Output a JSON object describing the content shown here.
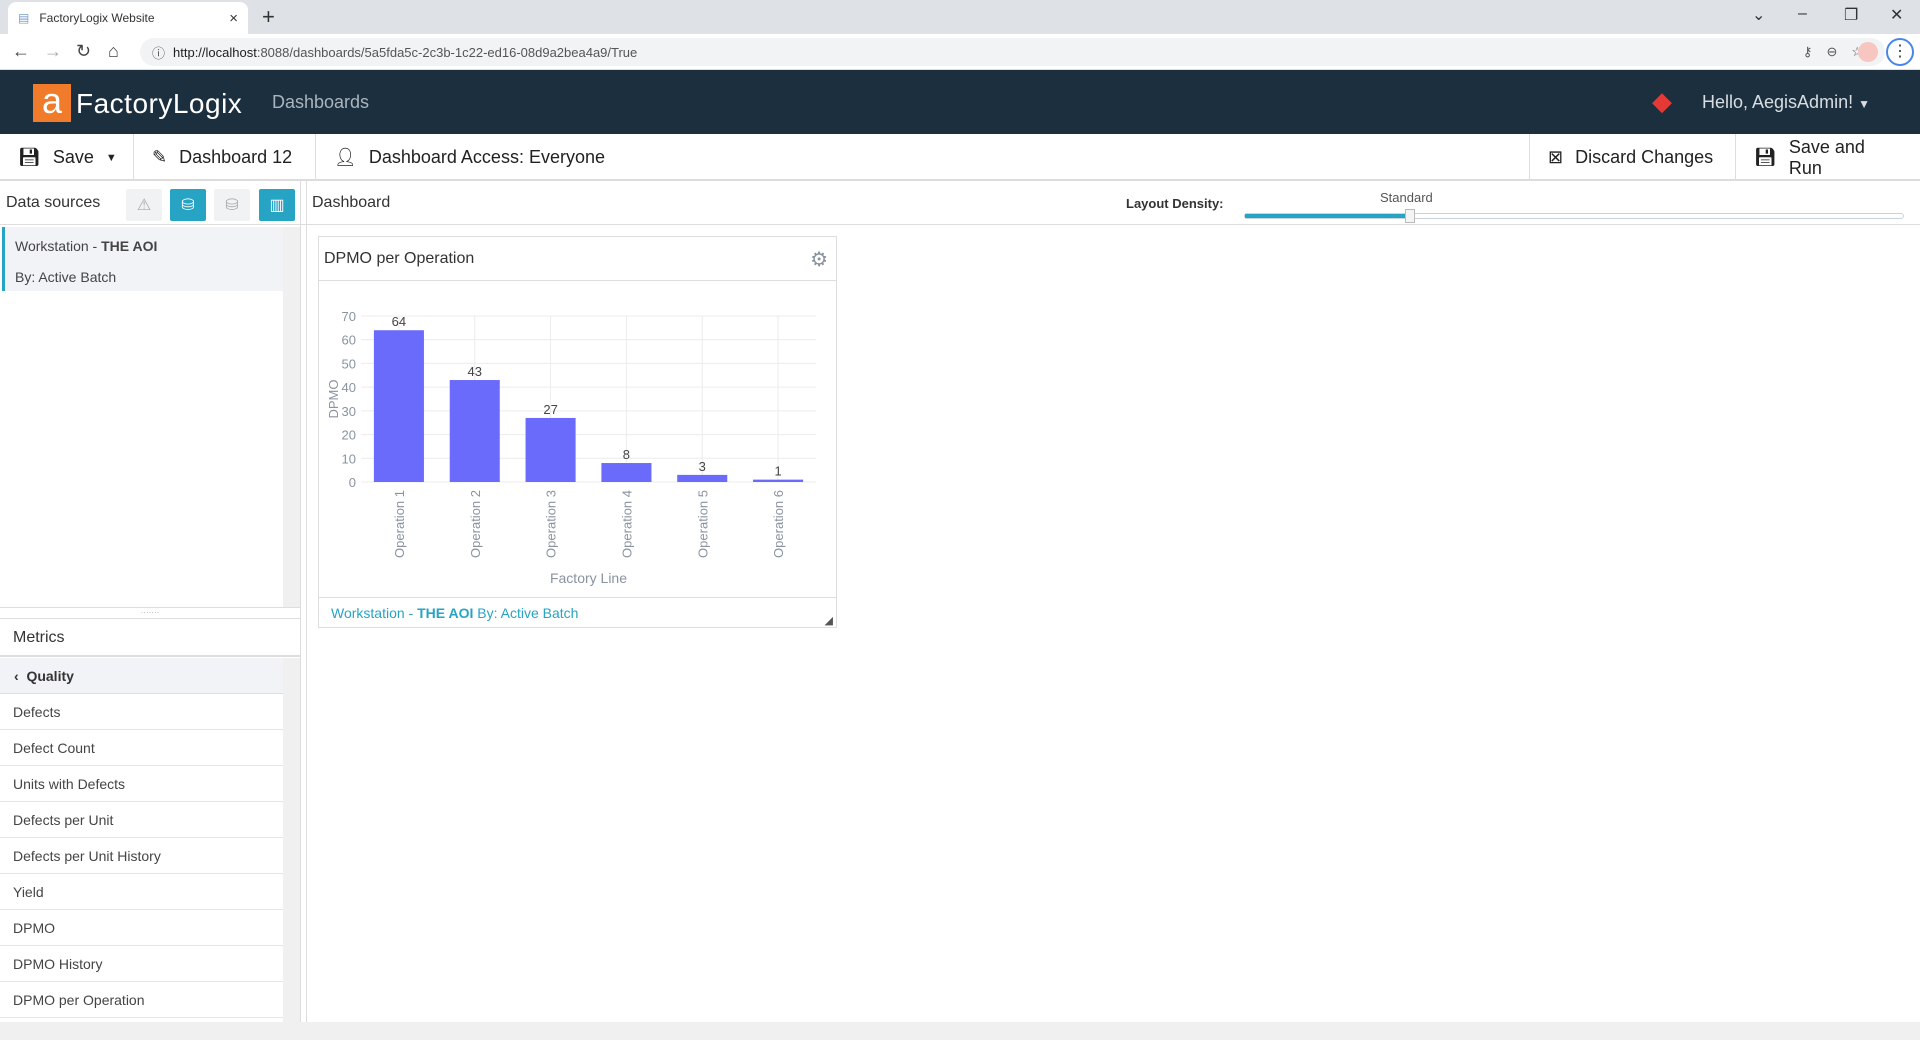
{
  "browser": {
    "tab_title": "FactoryLogix Website",
    "url_host": "http://localhost",
    "url_rest": ":8088/dashboards/5a5fda5c-2c3b-1c22-ed16-08d9a2bea4a9/True"
  },
  "header": {
    "brand": "FactoryLogix",
    "nav": "Dashboards",
    "user": "Hello, AegisAdmin!"
  },
  "toolbar": {
    "save": "Save",
    "dashboard_name": "Dashboard 12",
    "access": "Dashboard Access: Everyone",
    "discard": "Discard Changes",
    "save_run": "Save and Run"
  },
  "datasources": {
    "label": "Data sources",
    "item": {
      "prefix": "Workstation - ",
      "name": "THE AOI",
      "by": "By: Active Batch"
    }
  },
  "dashboard": {
    "label": "Dashboard",
    "density_label": "Layout Density:",
    "density_value": "Standard",
    "density_fraction": 0.25
  },
  "metrics": {
    "label": "Metrics",
    "category": "Quality",
    "items": [
      "Defects",
      "Defect Count",
      "Units with Defects",
      "Defects per Unit",
      "Defects per Unit History",
      "Yield",
      "DPMO",
      "DPMO History",
      "DPMO per Operation"
    ]
  },
  "widget": {
    "title": "DPMO per Operation",
    "footer_prefix": "Workstation - ",
    "footer_name": "THE AOI",
    "footer_by": " By: Active Batch"
  },
  "colors": {
    "accent": "#27a3c4",
    "header": "#1c2f3e",
    "bar": "#6b6bfb",
    "logo": "#f07b2a"
  },
  "chart_data": {
    "type": "bar",
    "title": "DPMO per Operation",
    "xlabel": "Factory Line",
    "ylabel": "DPMO",
    "categories": [
      "Operation 1",
      "Operation 2",
      "Operation 3",
      "Operation 4",
      "Operation 5",
      "Operation 6"
    ],
    "values": [
      64,
      43,
      27,
      8,
      3,
      1
    ],
    "ylim": [
      0,
      70
    ],
    "yticks": [
      0,
      10,
      20,
      30,
      40,
      50,
      60,
      70
    ],
    "grid": true
  }
}
